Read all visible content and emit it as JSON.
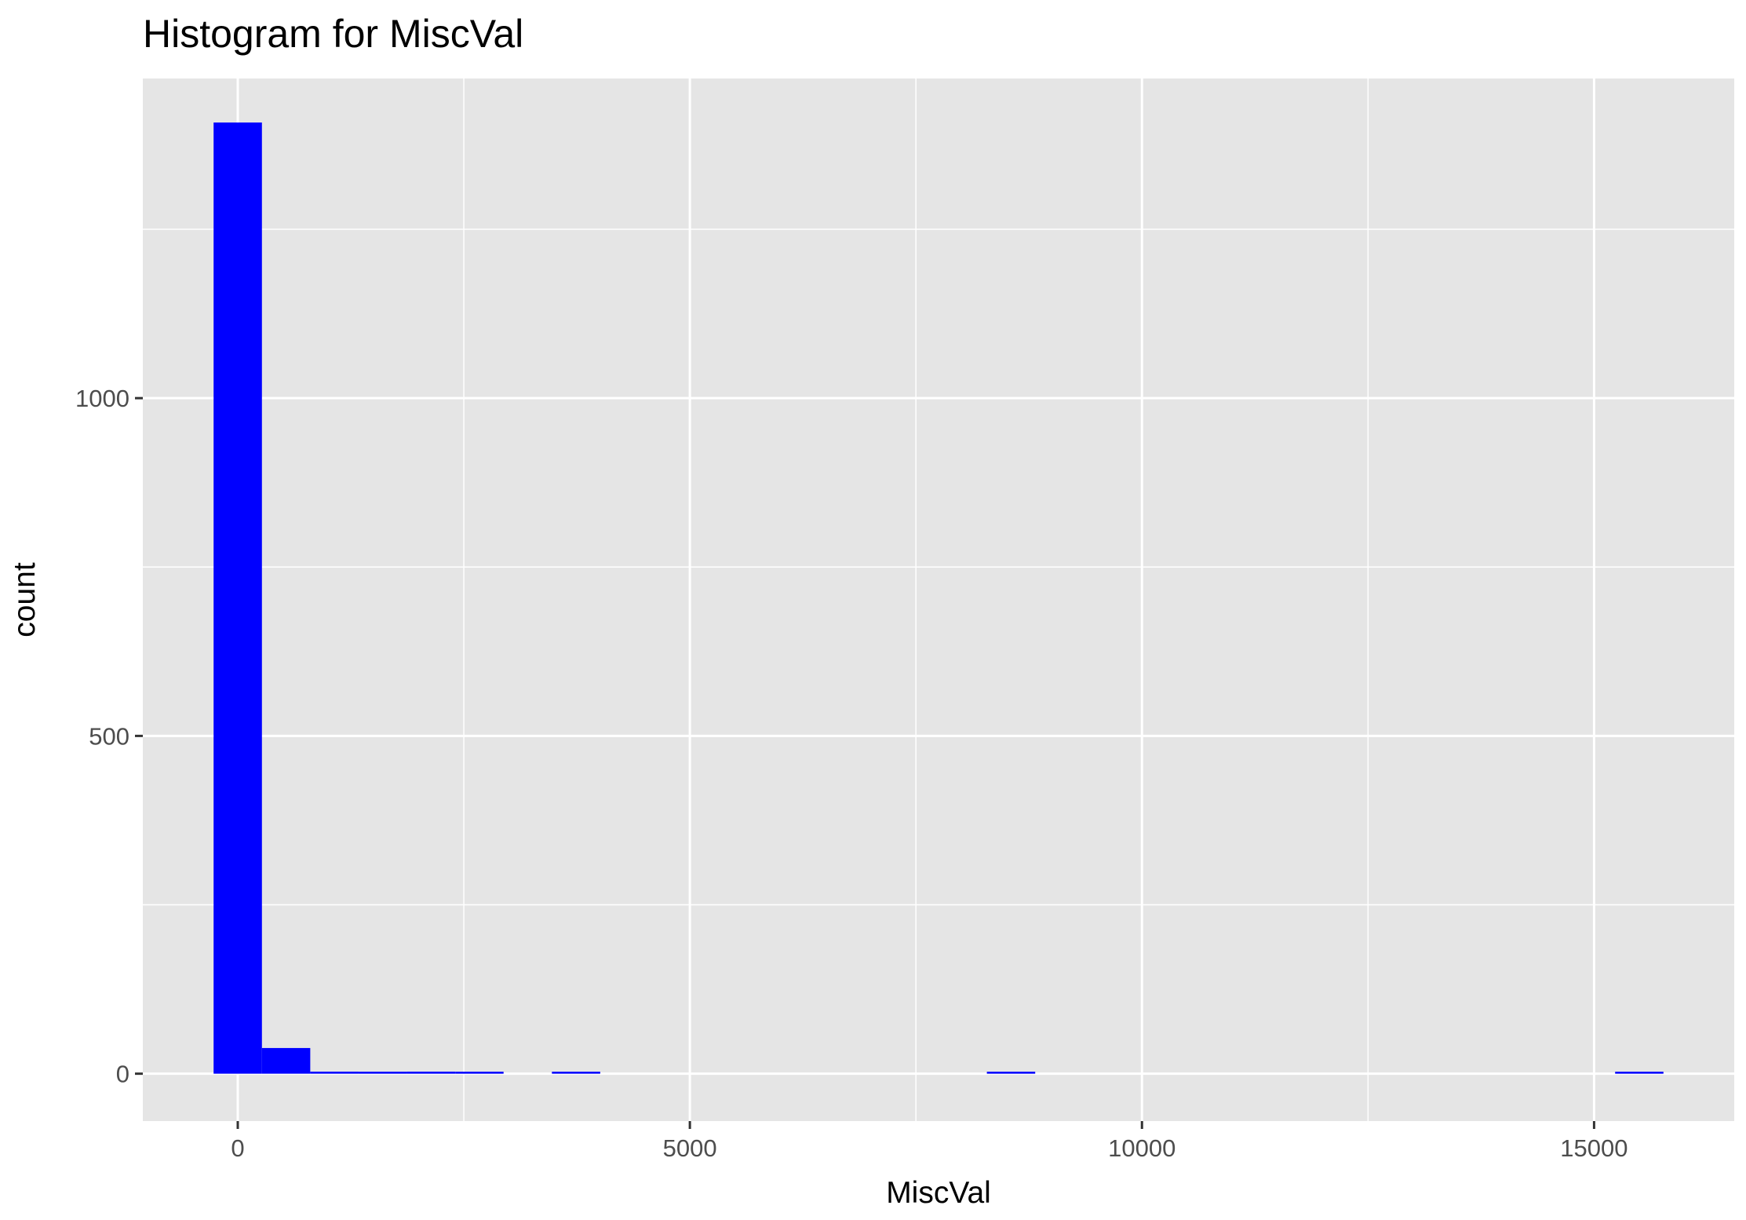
{
  "chart_data": {
    "type": "bar",
    "title": "Histogram for MiscVal",
    "xlabel": "MiscVal",
    "ylabel": "count",
    "xlim": [
      -1050,
      16550
    ],
    "ylim": [
      -70.15,
      1473.15
    ],
    "x_ticks": [
      0,
      5000,
      10000,
      15000
    ],
    "x_minor_ticks": [
      2500,
      7500,
      12500
    ],
    "y_ticks": [
      0,
      500,
      1000
    ],
    "y_minor_ticks": [
      250,
      750,
      1250
    ],
    "grid": true,
    "bin_width": 534.5,
    "bar_color": "#0000FF",
    "panel_background": "#E5E5E5",
    "grid_color": "#FFFFFF",
    "bins": [
      {
        "x": 0,
        "count": 1408
      },
      {
        "x": 534.5,
        "count": 38
      },
      {
        "x": 1069,
        "count": 3
      },
      {
        "x": 1603.5,
        "count": 1
      },
      {
        "x": 2138,
        "count": 3
      },
      {
        "x": 2672.5,
        "count": 1
      },
      {
        "x": 3741.5,
        "count": 1
      },
      {
        "x": 8552,
        "count": 1
      },
      {
        "x": 15500,
        "count": 1
      }
    ]
  }
}
